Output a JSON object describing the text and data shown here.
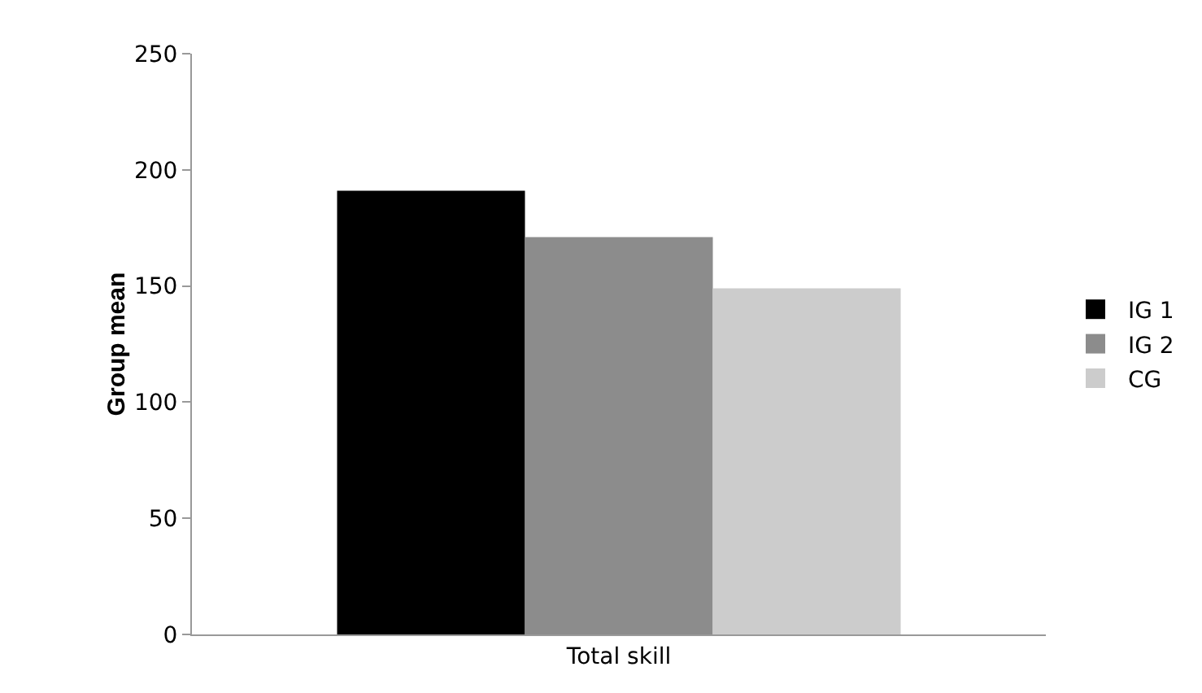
{
  "chart_data": {
    "type": "bar",
    "ylabel": "Group mean",
    "categories": [
      "Total skill"
    ],
    "series": [
      {
        "name": "IG 1",
        "color": "#000000",
        "values": [
          191
        ]
      },
      {
        "name": "IG 2",
        "color": "#8c8c8c",
        "values": [
          171
        ]
      },
      {
        "name": "CG",
        "color": "#cccccc",
        "values": [
          149
        ]
      }
    ],
    "ylim": [
      0,
      250
    ],
    "yticks": [
      0,
      50,
      100,
      150,
      200,
      250
    ],
    "grid": false,
    "legend": "right"
  }
}
